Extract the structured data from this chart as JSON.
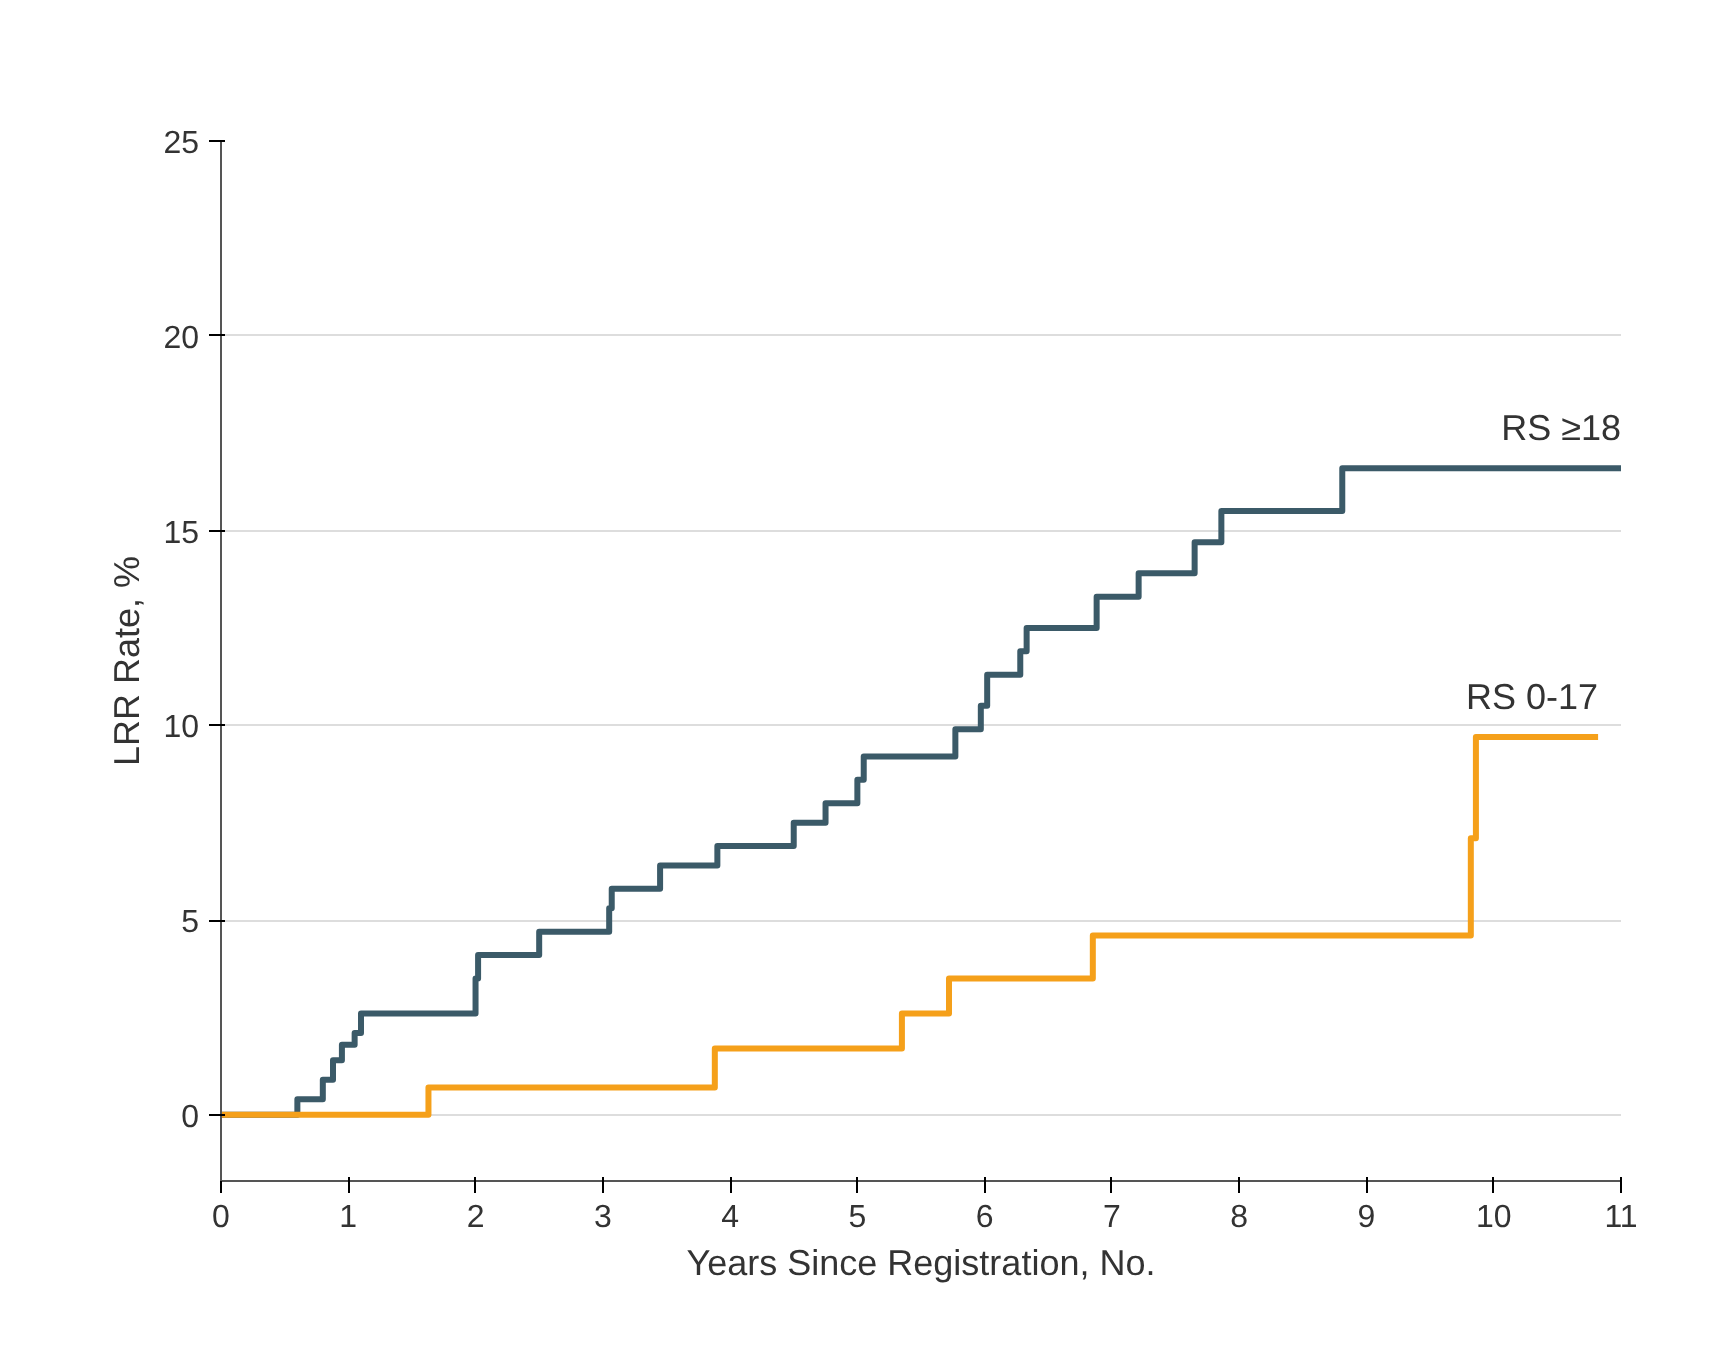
{
  "chart_data": {
    "type": "step",
    "xlabel": "Years Since Registration, No.",
    "ylabel": "LRR Rate, %",
    "xlim": [
      0,
      11
    ],
    "ylim": [
      -1.7,
      25
    ],
    "xticks": [
      0,
      1,
      2,
      3,
      4,
      5,
      6,
      7,
      8,
      9,
      10,
      11
    ],
    "yticks": [
      0,
      5,
      10,
      15,
      20,
      25
    ],
    "grid": "y",
    "series": [
      {
        "name": "RS ≥18",
        "color": "#3b5a68",
        "x": [
          0,
          0.6,
          0.8,
          0.88,
          0.95,
          1.05,
          1.1,
          2.0,
          2.02,
          2.5,
          3.05,
          3.07,
          3.45,
          3.9,
          4.5,
          4.75,
          5.0,
          5.05,
          5.77,
          5.97,
          6.02,
          6.28,
          6.33,
          6.88,
          7.21,
          7.65,
          7.86,
          8.81,
          11
        ],
        "values": [
          0,
          0.4,
          0.9,
          1.4,
          1.8,
          2.1,
          2.6,
          3.5,
          4.1,
          4.7,
          5.3,
          5.8,
          6.4,
          6.9,
          7.5,
          8.0,
          8.6,
          9.2,
          9.9,
          10.5,
          11.3,
          11.9,
          12.5,
          13.3,
          13.9,
          14.7,
          15.5,
          16.6,
          16.6
        ]
      },
      {
        "name": "RS 0-17",
        "color": "#f5a01a",
        "x": [
          0,
          1.63,
          3.88,
          5.35,
          5.72,
          6.85,
          9.82,
          9.86,
          10.82
        ],
        "values": [
          0,
          0.7,
          1.7,
          2.6,
          3.5,
          4.6,
          7.1,
          9.7,
          9.7
        ]
      }
    ]
  }
}
